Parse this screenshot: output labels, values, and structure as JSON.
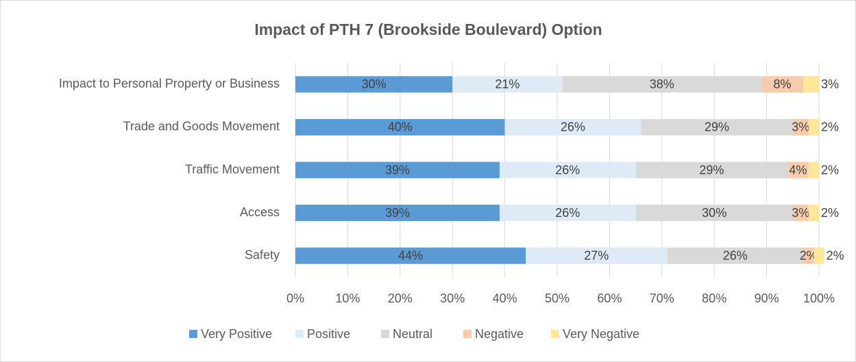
{
  "chart_data": {
    "type": "stacked_bar_horizontal",
    "title": "Impact of PTH 7 (Brookside Boulevard) Option",
    "categories": [
      "Impact to Personal Property or Business",
      "Trade and Goods Movement",
      "Traffic Movement",
      "Access",
      "Safety"
    ],
    "series": [
      {
        "name": "Very Positive",
        "color": "#5b9bd5",
        "values": [
          30,
          40,
          39,
          39,
          44
        ],
        "value_labels": [
          "30%",
          "40%",
          "39%",
          "39%",
          "44%"
        ]
      },
      {
        "name": "Positive",
        "color": "#deebf7",
        "values": [
          21,
          26,
          26,
          26,
          27
        ],
        "value_labels": [
          "21%",
          "26%",
          "26%",
          "26%",
          "27%"
        ]
      },
      {
        "name": "Neutral",
        "color": "#d9d9d9",
        "values": [
          38,
          29,
          29,
          30,
          26
        ],
        "value_labels": [
          "38%",
          "29%",
          "29%",
          "30%",
          "26%"
        ]
      },
      {
        "name": "Negative",
        "color": "#f8cbad",
        "values": [
          8,
          3,
          4,
          3,
          2
        ],
        "value_labels": [
          "8%",
          "3%",
          "4%",
          "3%",
          "2%"
        ]
      },
      {
        "name": "Very Negative",
        "color": "#ffe699",
        "values": [
          3,
          2,
          2,
          2,
          2
        ],
        "value_labels": [
          "3%",
          "2%",
          "2%",
          "2%",
          "2%"
        ]
      }
    ],
    "xlim": [
      0,
      100
    ],
    "xticks": [
      {
        "value": 0,
        "label": "0%"
      },
      {
        "value": 10,
        "label": "10%"
      },
      {
        "value": 20,
        "label": "20%"
      },
      {
        "value": 30,
        "label": "30%"
      },
      {
        "value": 40,
        "label": "40%"
      },
      {
        "value": 50,
        "label": "50%"
      },
      {
        "value": 60,
        "label": "60%"
      },
      {
        "value": 70,
        "label": "70%"
      },
      {
        "value": 80,
        "label": "80%"
      },
      {
        "value": 90,
        "label": "90%"
      },
      {
        "value": 100,
        "label": "100%"
      }
    ],
    "grid": true,
    "legend": "bottom"
  }
}
